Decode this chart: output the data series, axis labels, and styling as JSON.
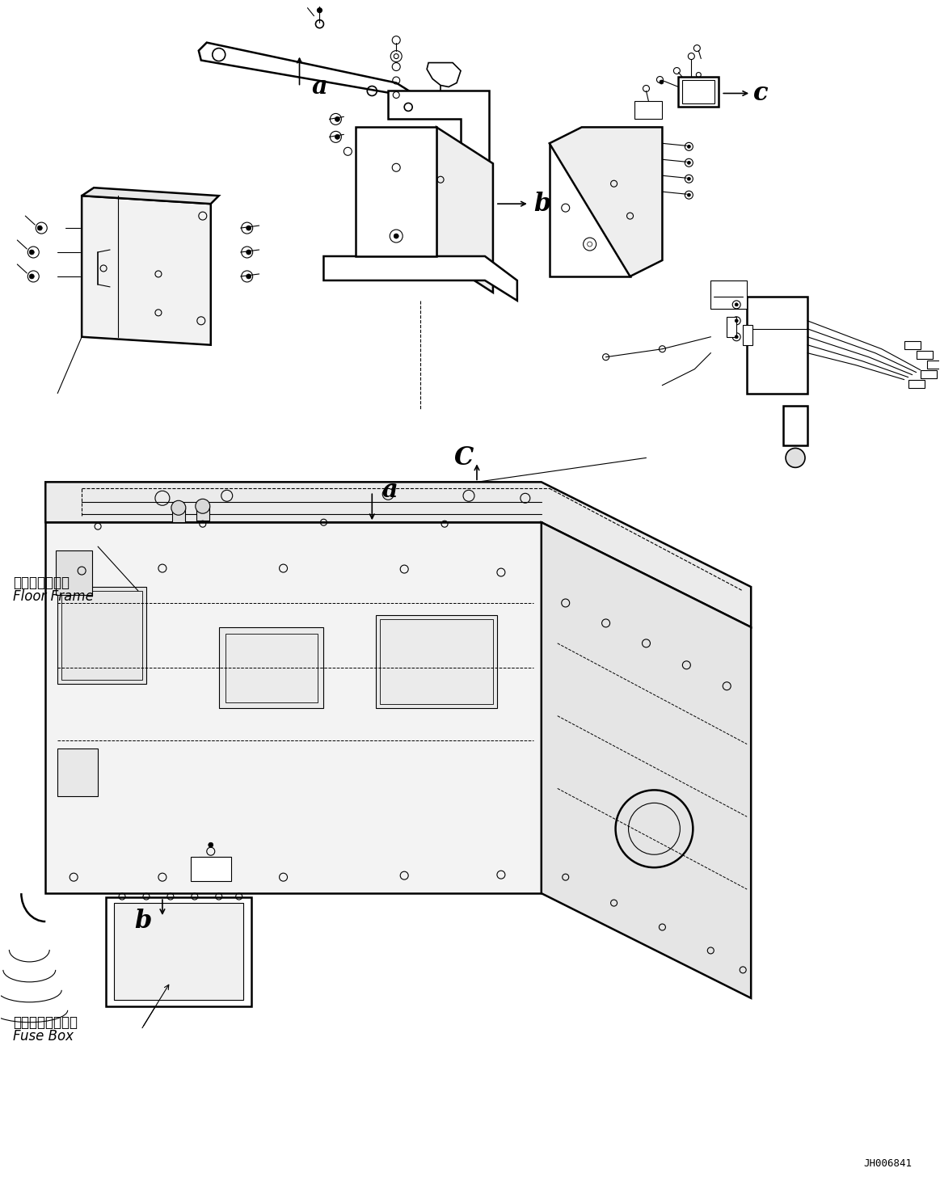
{
  "bg_color": "#ffffff",
  "line_color": "#000000",
  "text_color": "#000000",
  "diagram_id": "JH006841",
  "labels": {
    "floor_frame_jp": "フロアフレーム",
    "floor_frame_en": "Floor Frame",
    "fuse_box_jp": "フューズボックス",
    "fuse_box_en": "Fuse Box",
    "label_a1": "a",
    "label_b1": "b",
    "label_c1": "c",
    "label_a2": "a",
    "label_b2": "b",
    "label_c2": "C"
  },
  "figsize": [
    11.63,
    14.66
  ],
  "dpi": 100
}
